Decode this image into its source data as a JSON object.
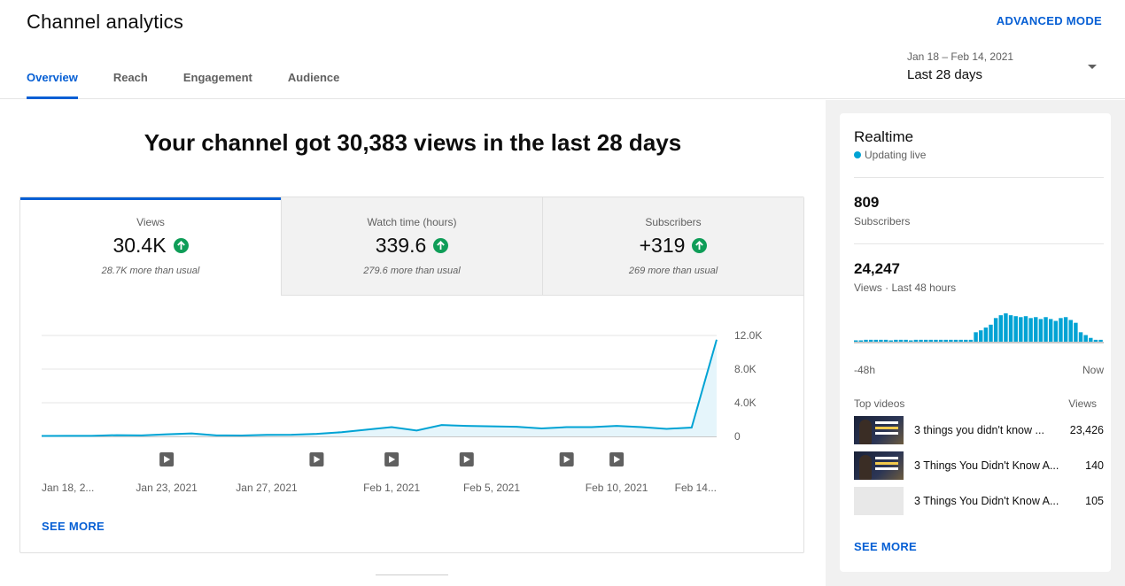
{
  "header": {
    "title": "Channel analytics",
    "advanced_mode": "ADVANCED MODE",
    "tabs": [
      {
        "label": "Overview",
        "active": true
      },
      {
        "label": "Reach",
        "active": false
      },
      {
        "label": "Engagement",
        "active": false
      },
      {
        "label": "Audience",
        "active": false
      }
    ],
    "date_range": "Jan 18 – Feb 14, 2021",
    "date_preset": "Last 28 days"
  },
  "main": {
    "headline": "Your channel got 30,383 views in the last 28 days",
    "stats": [
      {
        "label": "Views",
        "value": "30.4K",
        "note": "28.7K more than usual"
      },
      {
        "label": "Watch time (hours)",
        "value": "339.6",
        "note": "279.6 more than usual"
      },
      {
        "label": "Subscribers",
        "value": "+319",
        "note": "269 more than usual"
      }
    ],
    "see_more": "SEE MORE"
  },
  "chart_data": {
    "type": "line",
    "title": "",
    "x_tick_labels": [
      "Jan 18, 2...",
      "Jan 23, 2021",
      "Jan 27, 2021",
      "Feb 1, 2021",
      "Feb 5, 2021",
      "Feb 10, 2021",
      "Feb 14..."
    ],
    "y_tick_labels": [
      "12.0K",
      "8.0K",
      "4.0K",
      "0"
    ],
    "ylim": [
      0,
      12000
    ],
    "grid": true,
    "series": [
      {
        "color": "#00a3d4",
        "x": [
          "Jan 18",
          "Jan 19",
          "Jan 20",
          "Jan 21",
          "Jan 22",
          "Jan 23",
          "Jan 24",
          "Jan 25",
          "Jan 26",
          "Jan 27",
          "Jan 28",
          "Jan 29",
          "Jan 30",
          "Jan 31",
          "Feb 1",
          "Feb 2",
          "Feb 3",
          "Feb 4",
          "Feb 5",
          "Feb 6",
          "Feb 7",
          "Feb 8",
          "Feb 9",
          "Feb 10",
          "Feb 11",
          "Feb 12",
          "Feb 13",
          "Feb 14"
        ],
        "values": [
          50,
          60,
          70,
          150,
          120,
          250,
          350,
          120,
          100,
          180,
          200,
          300,
          500,
          800,
          1100,
          700,
          1350,
          1250,
          1200,
          1150,
          950,
          1100,
          1100,
          1250,
          1100,
          900,
          1050,
          11500
        ]
      }
    ],
    "video_marker_dates": [
      "Jan 23",
      "Jan 29",
      "Feb 1",
      "Feb 4",
      "Feb 8",
      "Feb 10"
    ]
  },
  "realtime": {
    "title": "Realtime",
    "status": "Updating live",
    "subscribers_value": "809",
    "subscribers_label": "Subscribers",
    "views_value": "24,247",
    "views_label": "Views · Last 48 hours",
    "hourly_views": [
      1,
      1,
      2,
      2,
      2,
      2,
      2,
      1,
      2,
      2,
      2,
      1,
      2,
      2,
      2,
      2,
      2,
      2,
      2,
      2,
      2,
      2,
      2,
      2,
      10,
      12,
      15,
      18,
      25,
      28,
      30,
      28,
      27,
      26,
      27,
      25,
      26,
      24,
      26,
      24,
      22,
      25,
      26,
      23,
      20,
      10,
      7,
      4,
      2,
      2
    ],
    "axis_start": "-48h",
    "axis_end": "Now",
    "top_videos_label": "Top videos",
    "views_col_label": "Views",
    "videos": [
      {
        "title": "3 things you didn't know ...",
        "views": "23,426"
      },
      {
        "title": "3 Things You Didn't Know A...",
        "views": "140"
      },
      {
        "title": "3 Things You Didn't Know A...",
        "views": "105"
      }
    ],
    "see_more": "SEE MORE"
  },
  "colors": {
    "accent": "#065fd4",
    "line": "#00a3d4",
    "up_arrow": "#0f9d58"
  }
}
